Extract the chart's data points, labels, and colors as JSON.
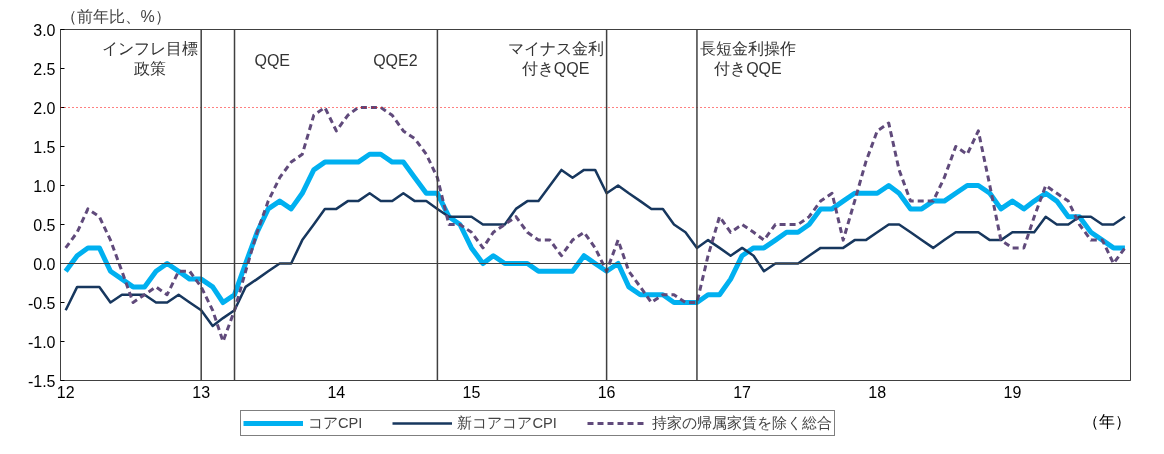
{
  "chart_data": {
    "type": "line",
    "ylabel": "（前年比、%）",
    "xlabel": "（年）",
    "x": [
      "2012-01",
      "2012-02",
      "2012-03",
      "2012-04",
      "2012-05",
      "2012-06",
      "2012-07",
      "2012-08",
      "2012-09",
      "2012-10",
      "2012-11",
      "2012-12",
      "2013-01",
      "2013-02",
      "2013-03",
      "2013-04",
      "2013-05",
      "2013-06",
      "2013-07",
      "2013-08",
      "2013-09",
      "2013-10",
      "2013-11",
      "2013-12",
      "2014-01",
      "2014-02",
      "2014-03",
      "2014-04",
      "2014-05",
      "2014-06",
      "2014-07",
      "2014-08",
      "2014-09",
      "2014-10",
      "2014-11",
      "2014-12",
      "2015-01",
      "2015-02",
      "2015-03",
      "2015-04",
      "2015-05",
      "2015-06",
      "2015-07",
      "2015-08",
      "2015-09",
      "2015-10",
      "2015-11",
      "2015-12",
      "2016-01",
      "2016-02",
      "2016-03",
      "2016-04",
      "2016-05",
      "2016-06",
      "2016-07",
      "2016-08",
      "2016-09",
      "2016-10",
      "2016-11",
      "2016-12",
      "2017-01",
      "2017-02",
      "2017-03",
      "2017-04",
      "2017-05",
      "2017-06",
      "2017-07",
      "2017-08",
      "2017-09",
      "2017-10",
      "2017-11",
      "2017-12",
      "2018-01",
      "2018-02",
      "2018-03",
      "2018-04",
      "2018-05",
      "2018-06",
      "2018-07",
      "2018-08",
      "2018-09",
      "2018-10",
      "2018-11",
      "2018-12",
      "2019-01",
      "2019-02",
      "2019-03",
      "2019-04",
      "2019-05",
      "2019-06",
      "2019-07",
      "2019-08",
      "2019-09",
      "2019-10",
      "2019-11"
    ],
    "series": [
      {
        "name": "コアCPI",
        "color": "#00b0f0",
        "line_style": "solid",
        "values": [
          -0.1,
          0.1,
          0.2,
          0.2,
          -0.1,
          -0.2,
          -0.3,
          -0.3,
          -0.1,
          0.0,
          -0.1,
          -0.2,
          -0.2,
          -0.3,
          -0.5,
          -0.4,
          0.0,
          0.4,
          0.7,
          0.8,
          0.7,
          0.9,
          1.2,
          1.3,
          1.3,
          1.3,
          1.3,
          1.4,
          1.4,
          1.3,
          1.3,
          1.1,
          0.9,
          0.9,
          0.6,
          0.5,
          0.2,
          0.0,
          0.1,
          0.0,
          0.0,
          0.0,
          -0.1,
          -0.1,
          -0.1,
          -0.1,
          0.1,
          0.0,
          -0.1,
          0.0,
          -0.3,
          -0.4,
          -0.4,
          -0.4,
          -0.5,
          -0.5,
          -0.5,
          -0.4,
          -0.4,
          -0.2,
          0.1,
          0.2,
          0.2,
          0.3,
          0.4,
          0.4,
          0.5,
          0.7,
          0.7,
          0.8,
          0.9,
          0.9,
          0.9,
          1.0,
          0.9,
          0.7,
          0.7,
          0.8,
          0.8,
          0.9,
          1.0,
          1.0,
          0.9,
          0.7,
          0.8,
          0.7,
          0.8,
          0.9,
          0.8,
          0.6,
          0.6,
          0.4,
          0.3,
          0.2,
          0.2
        ]
      },
      {
        "name": "新コアコアCPI",
        "color": "#17375e",
        "line_style": "solid",
        "values": [
          -0.6,
          -0.3,
          -0.3,
          -0.3,
          -0.5,
          -0.4,
          -0.4,
          -0.4,
          -0.5,
          -0.5,
          -0.4,
          -0.5,
          -0.6,
          -0.8,
          -0.7,
          -0.6,
          -0.3,
          -0.2,
          -0.1,
          0.0,
          0.0,
          0.3,
          0.5,
          0.7,
          0.7,
          0.8,
          0.8,
          0.9,
          0.8,
          0.8,
          0.9,
          0.8,
          0.8,
          0.7,
          0.6,
          0.6,
          0.6,
          0.5,
          0.5,
          0.5,
          0.7,
          0.8,
          0.8,
          1.0,
          1.2,
          1.1,
          1.2,
          1.2,
          0.9,
          1.0,
          0.9,
          0.8,
          0.7,
          0.7,
          0.5,
          0.4,
          0.2,
          0.3,
          0.2,
          0.1,
          0.2,
          0.1,
          -0.1,
          0.0,
          0.0,
          0.0,
          0.1,
          0.2,
          0.2,
          0.2,
          0.3,
          0.3,
          0.4,
          0.5,
          0.5,
          0.4,
          0.3,
          0.2,
          0.3,
          0.4,
          0.4,
          0.4,
          0.3,
          0.3,
          0.4,
          0.4,
          0.4,
          0.6,
          0.5,
          0.5,
          0.6,
          0.6,
          0.5,
          0.5,
          0.6
        ]
      },
      {
        "name": "持家の帰属家賃を除く総合",
        "color": "#604a7b",
        "line_style": "dashed",
        "values": [
          0.2,
          0.4,
          0.7,
          0.6,
          0.3,
          -0.1,
          -0.5,
          -0.4,
          -0.3,
          -0.4,
          -0.1,
          -0.1,
          -0.3,
          -0.6,
          -1.0,
          -0.6,
          -0.1,
          0.4,
          0.8,
          1.1,
          1.3,
          1.4,
          1.9,
          2.0,
          1.7,
          1.9,
          2.0,
          2.0,
          2.0,
          1.9,
          1.7,
          1.6,
          1.4,
          1.1,
          0.5,
          0.5,
          0.4,
          0.2,
          0.4,
          0.5,
          0.6,
          0.4,
          0.3,
          0.3,
          0.1,
          0.3,
          0.4,
          0.2,
          -0.1,
          0.3,
          -0.1,
          -0.3,
          -0.5,
          -0.4,
          -0.4,
          -0.5,
          -0.5,
          0.1,
          0.6,
          0.4,
          0.5,
          0.4,
          0.3,
          0.5,
          0.5,
          0.5,
          0.6,
          0.8,
          0.9,
          0.3,
          0.8,
          1.3,
          1.7,
          1.8,
          1.2,
          0.8,
          0.8,
          0.8,
          1.1,
          1.5,
          1.4,
          1.7,
          1.0,
          0.3,
          0.2,
          0.2,
          0.6,
          1.0,
          0.9,
          0.8,
          0.5,
          0.3,
          0.3,
          0.0,
          0.2
        ]
      }
    ],
    "xlim": [
      "2011-12-18",
      "2019-11-16"
    ],
    "xticks": [
      {
        "value": "2012-01",
        "label": "12"
      },
      {
        "value": "2013-01",
        "label": "13"
      },
      {
        "value": "2014-01",
        "label": "14"
      },
      {
        "value": "2015-01",
        "label": "15"
      },
      {
        "value": "2016-01",
        "label": "16"
      },
      {
        "value": "2017-01",
        "label": "17"
      },
      {
        "value": "2018-01",
        "label": "18"
      },
      {
        "value": "2019-01",
        "label": "19"
      }
    ],
    "ylim": [
      -1.5,
      3.0
    ],
    "yticks": [
      {
        "value": -1.5,
        "label": "-1.5"
      },
      {
        "value": -1.0,
        "label": "-1.0"
      },
      {
        "value": -0.5,
        "label": "-0.5"
      },
      {
        "value": 0,
        "label": "0.0"
      },
      {
        "value": 0.5,
        "label": "0.5"
      },
      {
        "value": 1.0,
        "label": "1.0"
      },
      {
        "value": 1.5,
        "label": "1.5"
      },
      {
        "value": 2.0,
        "label": "2.0"
      },
      {
        "value": 2.5,
        "label": "2.5"
      },
      {
        "value": 3.0,
        "label": "3.0"
      }
    ],
    "ref_lines": [
      {
        "axis": "y",
        "value": 2.0,
        "color": "#ff0000",
        "line_style": "dotted"
      },
      {
        "axis": "y",
        "value": 0,
        "color": "#404040",
        "line_style": "solid"
      },
      {
        "axis": "x",
        "value": "2013-01",
        "color": "#404040",
        "line_style": "solid"
      },
      {
        "axis": "x",
        "value": "2013-04",
        "color": "#404040",
        "line_style": "solid"
      },
      {
        "axis": "x",
        "value": "2014-10",
        "color": "#404040",
        "line_style": "solid"
      },
      {
        "axis": "x",
        "value": "2016-01",
        "color": "#404040",
        "line_style": "solid"
      },
      {
        "axis": "x",
        "value": "2016-09",
        "color": "#404040",
        "line_style": "solid"
      }
    ],
    "annotations": [
      "インフレ目標政策",
      "QQE",
      "QQE2",
      "マイナス金利付きQQE",
      "長短金利操作付きQQE"
    ],
    "legend": "bottom",
    "grid": false
  }
}
